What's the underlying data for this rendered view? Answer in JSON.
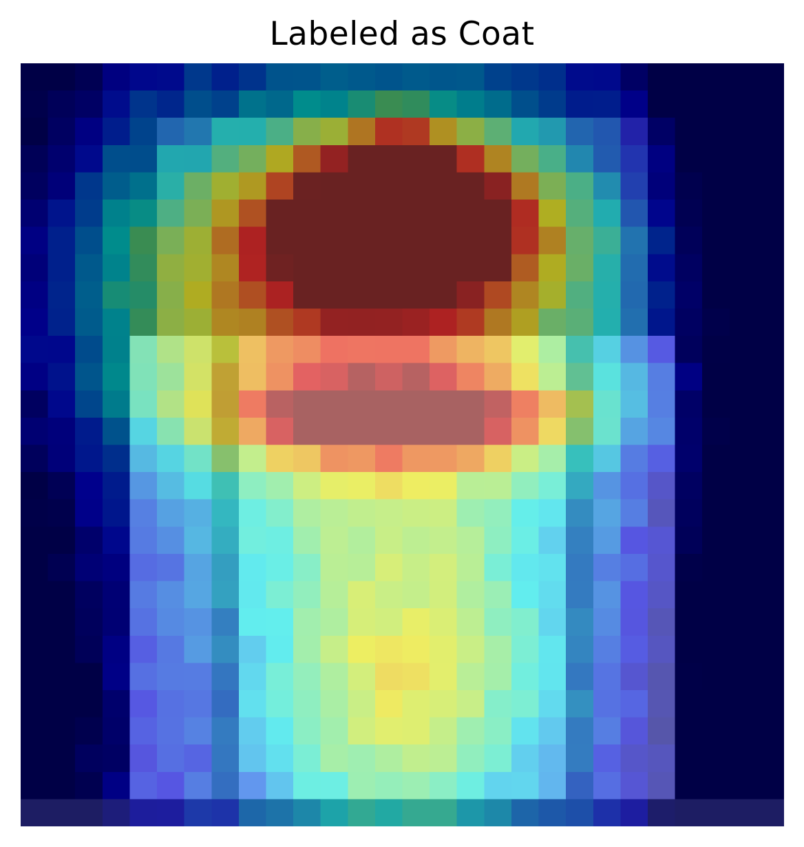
{
  "chart_data": {
    "type": "heatmap",
    "title": "Labeled as Coat",
    "rows": 28,
    "cols": 28,
    "axes": "off",
    "colormap": "jet",
    "colorbar": false
  }
}
